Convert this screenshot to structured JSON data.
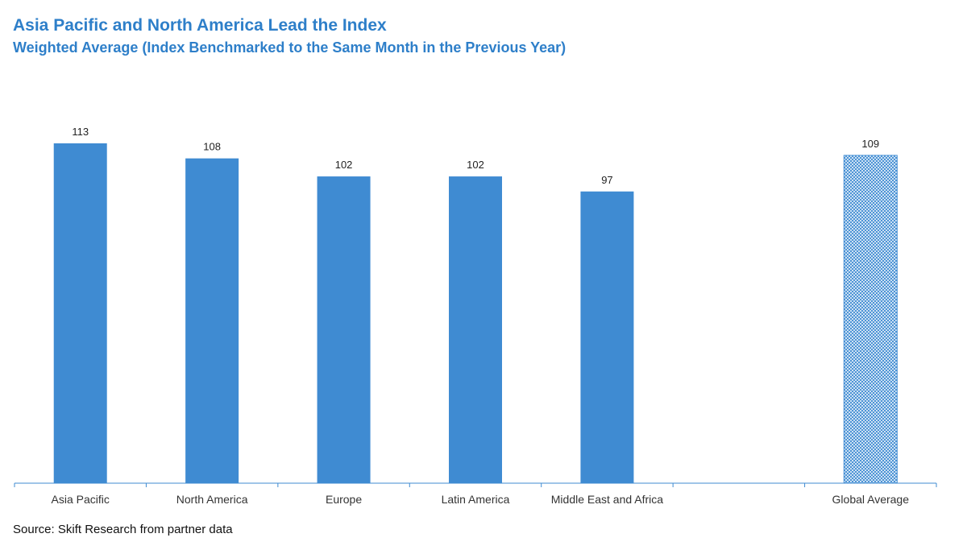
{
  "title": "Asia Pacific and North America Lead the Index",
  "subtitle": "Weighted Average (Index Benchmarked to the Same Month in the Previous Year)",
  "source": "Source: Skift Research from partner data",
  "chart_data": {
    "type": "bar",
    "categories": [
      "Asia Pacific",
      "North America",
      "Europe",
      "Latin America",
      "Middle East and Africa",
      "",
      "Global Average"
    ],
    "values": [
      113,
      108,
      102,
      102,
      97,
      null,
      109
    ],
    "data_labels": [
      "113",
      "108",
      "102",
      "102",
      "97",
      "",
      "109"
    ],
    "highlighted_category": "Global Average",
    "ylim": [
      0,
      113
    ],
    "grid": false,
    "legend": "none",
    "colors": {
      "bar": "#3f8bd2",
      "highlight_pattern": "#3f8bd2",
      "axis": "#3f8bd2"
    }
  }
}
